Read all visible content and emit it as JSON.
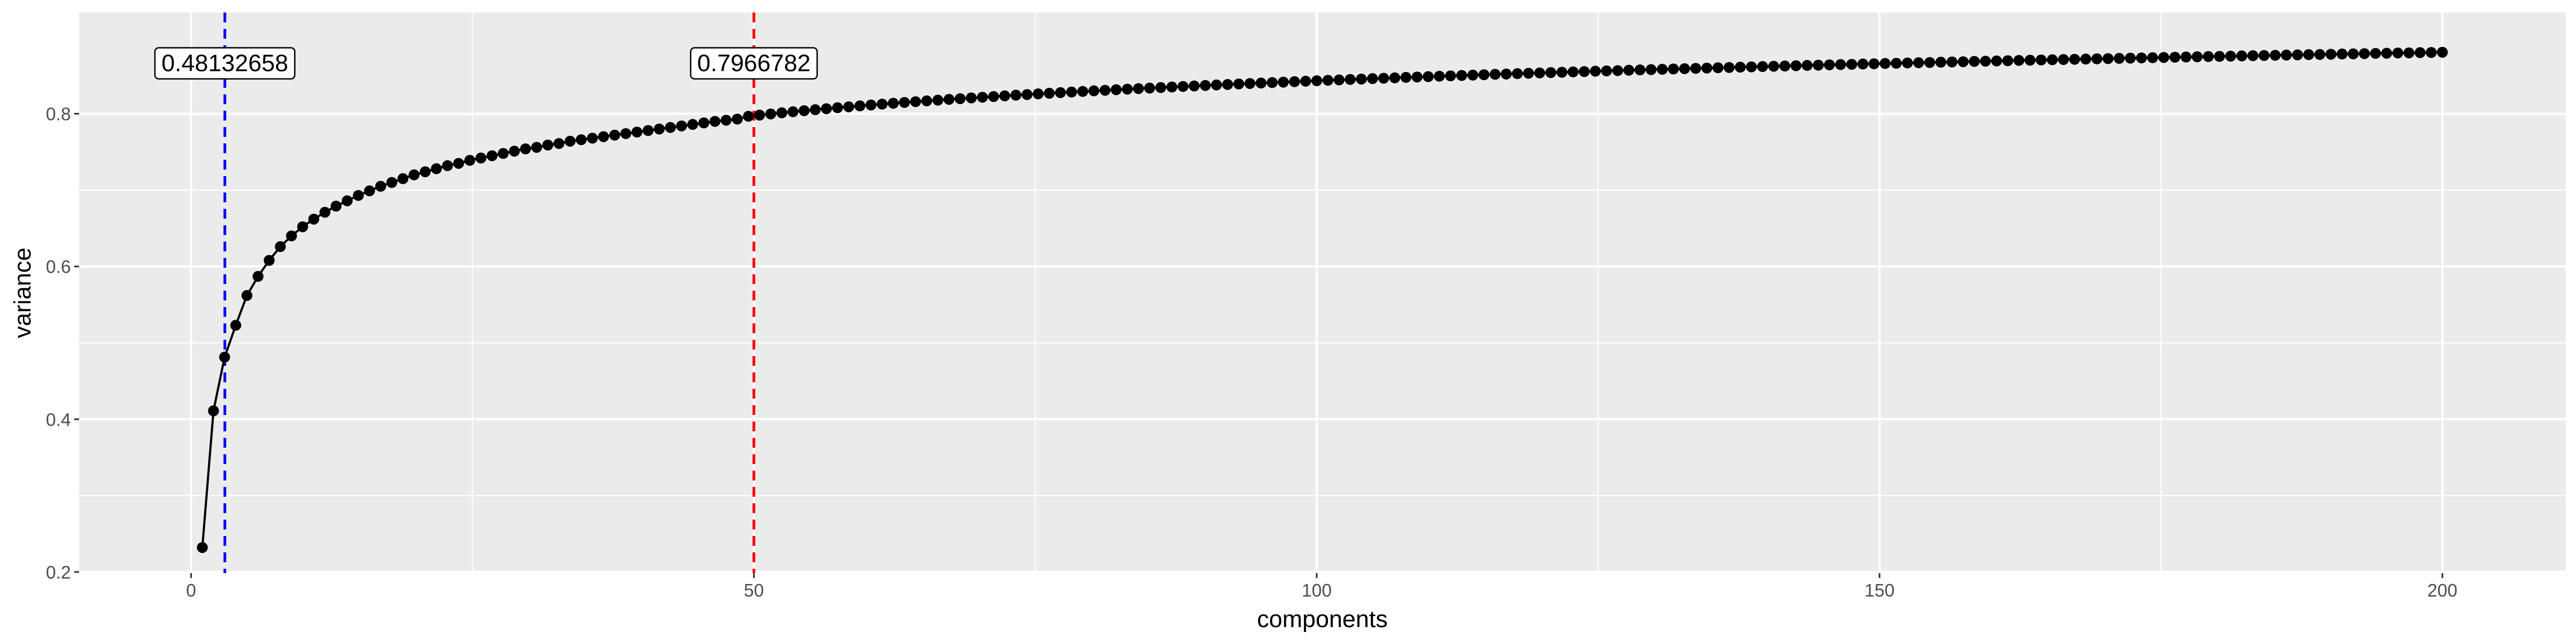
{
  "chart_data": {
    "type": "line",
    "xlabel": "components",
    "ylabel": "variance",
    "xlim": [
      -9.95,
      210.95
    ],
    "ylim": [
      0.1985,
      0.9325
    ],
    "x_ticks": [
      0,
      50,
      100,
      150,
      200
    ],
    "x_tick_labels": [
      "0",
      "50",
      "100",
      "150",
      "200"
    ],
    "y_ticks": [
      0.2,
      0.4,
      0.6,
      0.8
    ],
    "y_tick_labels": [
      "0.2",
      "0.4",
      "0.6",
      "0.8"
    ],
    "grid": true,
    "background": "#ebebeb",
    "series": [
      {
        "color": "#000000",
        "x_start": 1,
        "x_end": 200,
        "values": [
          0.232,
          0.411,
          0.4813,
          0.523,
          0.562,
          0.587,
          0.608,
          0.626,
          0.64,
          0.652,
          0.662,
          0.671,
          0.679,
          0.686,
          0.693,
          0.699,
          0.705,
          0.71,
          0.715,
          0.72,
          0.724,
          0.728,
          0.732,
          0.735,
          0.739,
          0.742,
          0.745,
          0.748,
          0.751,
          0.754,
          0.756,
          0.759,
          0.761,
          0.764,
          0.766,
          0.768,
          0.77,
          0.772,
          0.774,
          0.776,
          0.778,
          0.78,
          0.782,
          0.784,
          0.786,
          0.788,
          0.79,
          0.7915,
          0.793,
          0.7967,
          0.7982,
          0.7997,
          0.8012,
          0.8026,
          0.804,
          0.8053,
          0.8066,
          0.8079,
          0.8091,
          0.8103,
          0.8115,
          0.8126,
          0.8137,
          0.8148,
          0.8158,
          0.8168,
          0.8178,
          0.8188,
          0.8197,
          0.8207,
          0.8216,
          0.8225,
          0.8234,
          0.8243,
          0.8251,
          0.826,
          0.8268,
          0.8276,
          0.8284,
          0.8292,
          0.83,
          0.8307,
          0.8315,
          0.8322,
          0.8329,
          0.8336,
          0.8343,
          0.835,
          0.8357,
          0.8364,
          0.837,
          0.8377,
          0.8383,
          0.839,
          0.8396,
          0.8402,
          0.8408,
          0.8414,
          0.842,
          0.8426,
          0.8432,
          0.8438,
          0.8443,
          0.8449,
          0.8454,
          0.846,
          0.8465,
          0.847,
          0.8476,
          0.8481,
          0.8486,
          0.8491,
          0.8496,
          0.8501,
          0.8506,
          0.8511,
          0.8516,
          0.852,
          0.8525,
          0.853,
          0.8534,
          0.8539,
          0.8543,
          0.8548,
          0.8552,
          0.8557,
          0.8561,
          0.8565,
          0.857,
          0.8574,
          0.8578,
          0.8582,
          0.8586,
          0.859,
          0.8594,
          0.8598,
          0.8602,
          0.8606,
          0.861,
          0.8614,
          0.8618,
          0.8622,
          0.8625,
          0.8629,
          0.8633,
          0.8636,
          0.864,
          0.8644,
          0.8647,
          0.8651,
          0.8654,
          0.8658,
          0.8661,
          0.8665,
          0.8668,
          0.8671,
          0.8675,
          0.8678,
          0.8681,
          0.8685,
          0.8688,
          0.8691,
          0.8694,
          0.8698,
          0.8701,
          0.8704,
          0.8707,
          0.871,
          0.8713,
          0.8716,
          0.8719,
          0.8722,
          0.8725,
          0.8728,
          0.8731,
          0.8734,
          0.8737,
          0.874,
          0.8743,
          0.8746,
          0.8749,
          0.8751,
          0.8754,
          0.8757,
          0.876,
          0.8763,
          0.8765,
          0.8768,
          0.8771,
          0.8774,
          0.8776,
          0.8779,
          0.8782,
          0.8784,
          0.8787,
          0.879,
          0.8792,
          0.8795,
          0.8797,
          0.88,
          0.8802,
          0.8805
        ]
      }
    ],
    "reference_lines": [
      {
        "x": 3,
        "color": "#0000ff",
        "style": "dashed",
        "label": "0.48132658",
        "label_x": 3,
        "label_y": 0.866
      },
      {
        "x": 50,
        "color": "#ff0000",
        "style": "dashed",
        "label": "0.7966782",
        "label_x": 50,
        "label_y": 0.866
      }
    ]
  }
}
